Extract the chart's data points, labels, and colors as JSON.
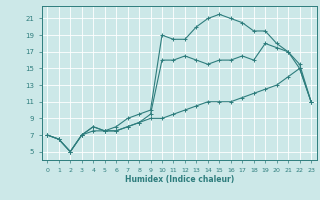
{
  "xlabel": "Humidex (Indice chaleur)",
  "background_color": "#cce8e8",
  "grid_color": "#ffffff",
  "line_color": "#2e7d7d",
  "xlim": [
    -0.5,
    23.5
  ],
  "ylim": [
    4,
    22.5
  ],
  "xticks": [
    0,
    1,
    2,
    3,
    4,
    5,
    6,
    7,
    8,
    9,
    10,
    11,
    12,
    13,
    14,
    15,
    16,
    17,
    18,
    19,
    20,
    21,
    22,
    23
  ],
  "yticks": [
    5,
    7,
    9,
    11,
    13,
    15,
    17,
    19,
    21
  ],
  "series1_x": [
    0,
    1,
    2,
    3,
    4,
    5,
    6,
    7,
    8,
    9,
    10,
    11,
    12,
    13,
    14,
    15,
    16,
    17,
    18,
    19,
    20,
    21,
    22,
    23
  ],
  "series1_y": [
    7,
    6.5,
    5,
    7,
    8,
    7.5,
    7.5,
    8,
    8.5,
    9.0,
    9.0,
    9.5,
    10,
    10.5,
    11,
    11,
    11,
    11.5,
    12,
    12.5,
    13,
    14,
    15,
    11
  ],
  "series2_x": [
    0,
    1,
    2,
    3,
    4,
    5,
    6,
    7,
    8,
    9,
    10,
    11,
    12,
    13,
    14,
    15,
    16,
    17,
    18,
    19,
    20,
    21,
    22,
    23
  ],
  "series2_y": [
    7,
    6.5,
    5,
    7,
    7.5,
    7.5,
    7.5,
    8,
    8.5,
    9.5,
    16,
    16,
    16.5,
    16,
    15.5,
    16,
    16,
    16.5,
    16,
    18,
    17.5,
    17,
    15.5,
    11
  ],
  "series3_x": [
    0,
    1,
    2,
    3,
    4,
    5,
    6,
    7,
    8,
    9,
    10,
    11,
    12,
    13,
    14,
    15,
    16,
    17,
    18,
    19,
    20,
    21,
    22,
    23
  ],
  "series3_y": [
    7,
    6.5,
    5,
    7,
    8,
    7.5,
    8,
    9,
    9.5,
    10,
    19,
    18.5,
    18.5,
    20,
    21,
    21.5,
    21,
    20.5,
    19.5,
    19.5,
    18,
    17,
    15,
    11
  ]
}
